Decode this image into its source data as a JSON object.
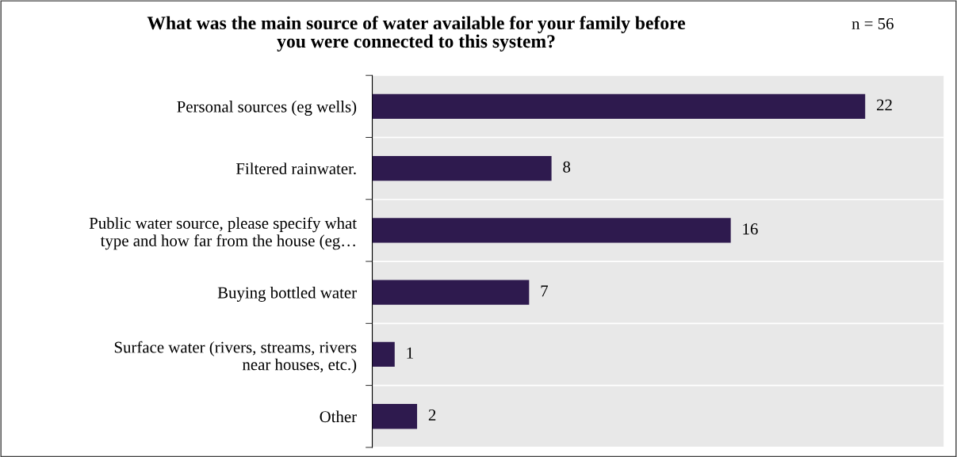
{
  "chart_data": {
    "type": "bar",
    "orientation": "horizontal",
    "title": "What was the main source of water available for your family before\nyou were connected to this system?",
    "annotations": [
      "n = 56"
    ],
    "categories": [
      "Personal sources (eg wells)",
      "Filtered rainwater.",
      "Public water source, please specify what\ntype and how far from the house (eg…",
      "Buying bottled water",
      "Surface water (rivers, streams, rivers\nnear houses, etc.)",
      "Other"
    ],
    "values": [
      22,
      8,
      16,
      7,
      1,
      2
    ],
    "color": "#2e1a4e",
    "xlim": [
      0,
      25.5
    ],
    "data_labels": true,
    "grid": "y"
  }
}
